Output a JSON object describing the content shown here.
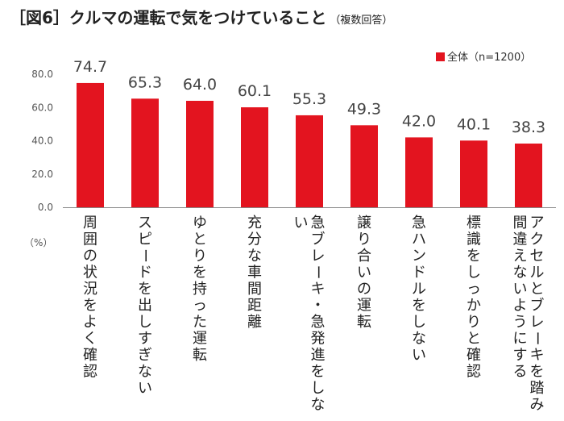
{
  "title": "［図6］クルマの運転で気をつけていること",
  "subtitle": "（複数回答）",
  "legend_label": "全体（n=1200）",
  "unit_label": "（%）",
  "colors": {
    "bar": "#e3141f",
    "axis": "#888888",
    "text": "#333333"
  },
  "chart_data": {
    "type": "bar",
    "title": "［図6］クルマの運転で気をつけていること",
    "subtitle": "（複数回答）",
    "xlabel": "",
    "ylabel": "（%）",
    "ylim": [
      0,
      80
    ],
    "yticks": [
      "0.0",
      "20.0",
      "40.0",
      "60.0",
      "80.0"
    ],
    "grid": false,
    "legend": "top-right",
    "categories": [
      "周囲の状況をよく確認",
      "スピードを出しすぎない",
      "ゆとりを持った運転",
      "充分な車間距離",
      "急ブレーキ・急発進をしない",
      "譲り合いの運転",
      "急ハンドルをしない",
      "標識をしっかりと確認",
      "アクセルとブレーキを踏み間違えないようにする"
    ],
    "series": [
      {
        "name": "全体（n=1200）",
        "values": [
          74.7,
          65.3,
          64.0,
          60.1,
          55.3,
          49.3,
          42.0,
          40.1,
          38.3
        ]
      }
    ],
    "value_labels": [
      "74.7",
      "65.3",
      "64.0",
      "60.1",
      "55.3",
      "49.3",
      "42.0",
      "40.1",
      "38.3"
    ]
  }
}
